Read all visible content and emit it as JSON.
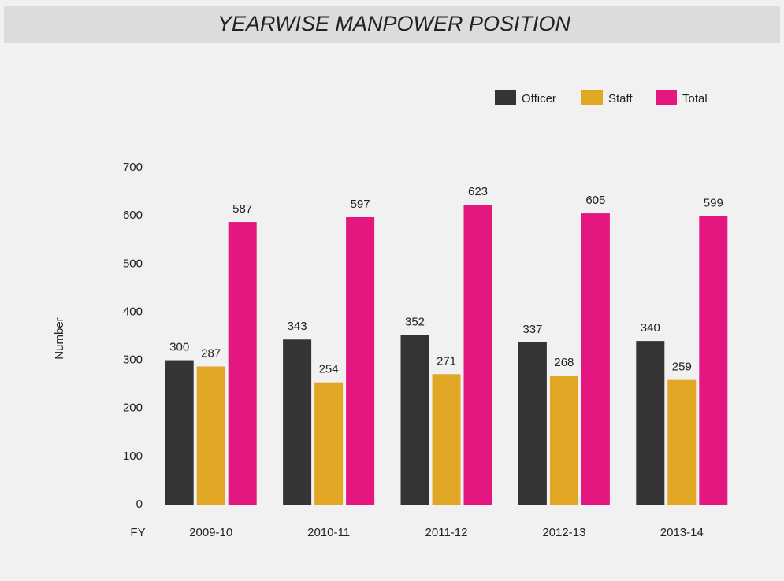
{
  "chart_data": {
    "type": "bar",
    "title": "YEARWISE MANPOWER POSITION",
    "x_label": "FY",
    "y_label": "Number",
    "categories": [
      "2009-10",
      "2010-11",
      "2011-12",
      "2012-13",
      "2013-14"
    ],
    "series": [
      {
        "name": "Officer",
        "color": "#343434",
        "values": [
          300,
          343,
          352,
          337,
          340
        ]
      },
      {
        "name": "Staff",
        "color": "#e0a624",
        "values": [
          287,
          254,
          271,
          268,
          259
        ]
      },
      {
        "name": "Total",
        "color": "#e3177f",
        "values": [
          587,
          597,
          623,
          605,
          599
        ]
      }
    ],
    "ylim": [
      0,
      700
    ],
    "yticks": [
      0,
      100,
      200,
      300,
      400,
      500,
      600,
      700
    ],
    "grid": false,
    "legend": "top-right"
  }
}
